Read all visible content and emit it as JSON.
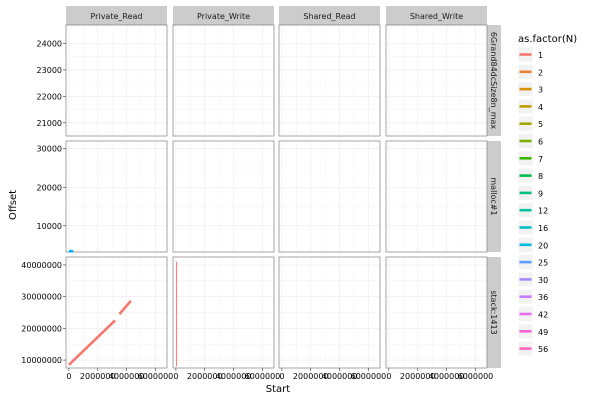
{
  "chart_data": {
    "type": "line",
    "xlabel": "Start",
    "ylabel": "Offset",
    "columns": [
      "Private_Read",
      "Private_Write",
      "Shared_Read",
      "Shared_Write"
    ],
    "rows": [
      {
        "label": "6Grand84dcSize8n_max",
        "ylim": [
          20500,
          24700
        ],
        "yticks": [
          21000,
          22000,
          23000,
          24000
        ],
        "ytick_labels": [
          "21000",
          "22000",
          "23000",
          "24000"
        ]
      },
      {
        "label": "malloc#1",
        "ylim": [
          3200,
          32000
        ],
        "yticks": [
          10000,
          20000,
          30000
        ],
        "ytick_labels": [
          "10000",
          "20000",
          "30000"
        ]
      },
      {
        "label": "stack:1413",
        "ylim": [
          7500000,
          42500000
        ],
        "yticks": [
          10000000,
          20000000,
          30000000,
          40000000
        ],
        "ytick_labels": [
          "10000000",
          "20000000",
          "30000000",
          "40000000"
        ]
      }
    ],
    "xlim": [
      -200000,
      6800000
    ],
    "xticks": [
      0,
      2000000,
      4000000,
      6000000
    ],
    "xtick_labels": [
      "0",
      "2000000",
      "4000000",
      "6000000"
    ],
    "legend": {
      "title": "as.factor(N)",
      "position": "right",
      "entries": [
        {
          "label": "1",
          "color": "#F8766D"
        },
        {
          "label": "2",
          "color": "#EA8331"
        },
        {
          "label": "3",
          "color": "#D89000"
        },
        {
          "label": "4",
          "color": "#C09B00"
        },
        {
          "label": "5",
          "color": "#A3A500"
        },
        {
          "label": "6",
          "color": "#7CAE00"
        },
        {
          "label": "7",
          "color": "#39B600"
        },
        {
          "label": "8",
          "color": "#00BB4E"
        },
        {
          "label": "9",
          "color": "#00BF7D"
        },
        {
          "label": "12",
          "color": "#00C1A3"
        },
        {
          "label": "16",
          "color": "#00BFC4"
        },
        {
          "label": "20",
          "color": "#00BAE0"
        },
        {
          "label": "25",
          "color": "#619CFF"
        },
        {
          "label": "30",
          "color": "#A58AFF"
        },
        {
          "label": "36",
          "color": "#C77CFF"
        },
        {
          "label": "42",
          "color": "#E76BF3"
        },
        {
          "label": "49",
          "color": "#FA62DB"
        },
        {
          "label": "56",
          "color": "#FF62BC"
        }
      ]
    },
    "series": [
      {
        "row": 1,
        "col": 0,
        "group": "1",
        "color": "#00A9FF",
        "points": [
          [
            0,
            3400
          ],
          [
            300000,
            3400
          ]
        ]
      },
      {
        "row": 2,
        "col": 0,
        "group": "1",
        "color": "#F8766D",
        "points": [
          [
            0,
            8500000
          ],
          [
            3200000,
            22500000
          ]
        ]
      },
      {
        "row": 2,
        "col": 0,
        "group": "1",
        "color": "#F8766D",
        "points": [
          [
            3500000,
            24500000
          ],
          [
            4300000,
            28700000
          ]
        ]
      },
      {
        "row": 2,
        "col": 1,
        "group": "1",
        "color": "#F8766D",
        "thin": true,
        "points": [
          [
            50000,
            8000000
          ],
          [
            50000,
            41000000
          ]
        ]
      }
    ]
  }
}
